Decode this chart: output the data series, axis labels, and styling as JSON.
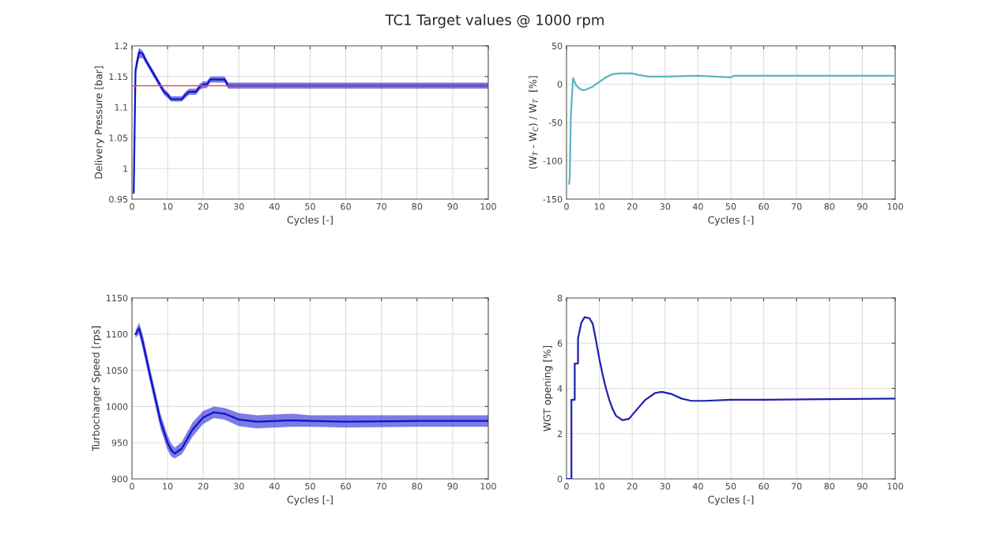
{
  "chart_data": [
    {
      "type": "line",
      "title": "TC1 Target values @ 1000 rpm",
      "xlabel": "Cycles [-]",
      "ylabel": "Delivery Pressure [bar]",
      "xlim": [
        0,
        100
      ],
      "xticks": [
        0,
        10,
        20,
        30,
        40,
        50,
        60,
        70,
        80,
        90,
        100
      ],
      "ylim": [
        0.95,
        1.2
      ],
      "yticks": [
        0.95,
        1,
        1.05,
        1.1,
        1.15,
        1.2
      ],
      "grid": true,
      "series": [
        {
          "color": "#1010d0",
          "x": [
            0.5,
            1,
            2,
            3,
            4,
            5,
            6,
            7,
            8,
            9,
            10,
            11,
            14,
            15,
            16,
            18,
            19,
            20,
            21,
            22,
            26,
            27,
            100
          ],
          "values": [
            0.96,
            1.16,
            1.19,
            1.187,
            1.175,
            1.165,
            1.155,
            1.145,
            1.135,
            1.125,
            1.12,
            1.113,
            1.113,
            1.12,
            1.125,
            1.125,
            1.133,
            1.137,
            1.137,
            1.145,
            1.145,
            1.135,
            1.135
          ],
          "lower": [
            0.95,
            1.15,
            1.18,
            1.18,
            1.17,
            1.16,
            1.15,
            1.14,
            1.13,
            1.12,
            1.115,
            1.109,
            1.109,
            1.115,
            1.12,
            1.12,
            1.128,
            1.131,
            1.131,
            1.14,
            1.14,
            1.13,
            1.13
          ],
          "upper": [
            0.97,
            1.17,
            1.197,
            1.192,
            1.18,
            1.17,
            1.16,
            1.15,
            1.14,
            1.13,
            1.125,
            1.118,
            1.118,
            1.125,
            1.13,
            1.13,
            1.138,
            1.142,
            1.142,
            1.15,
            1.15,
            1.14,
            1.14
          ]
        }
      ],
      "ref_lines": [
        {
          "axis": "y",
          "value": 1.135,
          "color": "#d9534f"
        }
      ]
    },
    {
      "type": "line",
      "xlabel": "Cycles [-]",
      "ylabel": "(W$_{T}$ - W$_{C}$) / W$_{T}$  [%]",
      "xlim": [
        0,
        100
      ],
      "xticks": [
        0,
        10,
        20,
        30,
        40,
        50,
        60,
        70,
        80,
        90,
        100
      ],
      "ylim": [
        -150,
        50
      ],
      "yticks": [
        -150,
        -100,
        -50,
        0,
        50
      ],
      "grid": true,
      "series": [
        {
          "color": "#5ab4c6",
          "x": [
            0.8,
            1,
            1.3,
            1.6,
            2,
            2.5,
            3,
            4,
            5,
            6,
            8,
            10,
            12,
            14,
            16,
            20,
            22,
            25,
            30,
            40,
            50,
            51,
            52,
            60,
            100
          ],
          "values": [
            -130,
            -120,
            -45,
            -20,
            8,
            3,
            -2,
            -6,
            -8,
            -7,
            -3,
            3,
            9,
            13,
            14,
            14,
            12,
            10,
            10,
            11,
            9,
            11,
            11,
            11,
            11
          ]
        }
      ]
    },
    {
      "type": "line",
      "xlabel": "Cycles [-]",
      "ylabel": "Turbocharger Speed [rps]",
      "xlim": [
        0,
        100
      ],
      "xticks": [
        0,
        10,
        20,
        30,
        40,
        50,
        60,
        70,
        80,
        90,
        100
      ],
      "ylim": [
        900,
        1150
      ],
      "yticks": [
        900,
        950,
        1000,
        1050,
        1100,
        1150
      ],
      "grid": true,
      "series": [
        {
          "color": "#1010d0",
          "x": [
            1,
            2,
            3,
            5,
            8,
            10,
            11,
            12,
            14,
            17,
            20,
            23,
            26,
            30,
            35,
            45,
            50,
            60,
            80,
            100
          ],
          "values": [
            1100,
            1108,
            1090,
            1045,
            980,
            950,
            940,
            935,
            942,
            968,
            985,
            992,
            990,
            982,
            979,
            981,
            980,
            979,
            980,
            980
          ],
          "lower": [
            1095,
            1100,
            1080,
            1035,
            970,
            940,
            931,
            928,
            934,
            958,
            976,
            984,
            982,
            973,
            970,
            972,
            972,
            971,
            972,
            972
          ],
          "upper": [
            1105,
            1116,
            1100,
            1055,
            990,
            960,
            949,
            943,
            951,
            978,
            994,
            1000,
            998,
            991,
            988,
            990,
            988,
            988,
            988,
            988
          ]
        }
      ]
    },
    {
      "type": "line",
      "xlabel": "Cycles [-]",
      "ylabel": "WGT opening [%]",
      "xlim": [
        0,
        100
      ],
      "xticks": [
        0,
        10,
        20,
        30,
        40,
        50,
        60,
        70,
        80,
        90,
        100
      ],
      "ylim": [
        0,
        8
      ],
      "yticks": [
        0,
        2,
        4,
        6,
        8
      ],
      "grid": true,
      "series": [
        {
          "color": "#1f1fb4",
          "x": [
            0,
            1.5,
            1.5,
            2.5,
            2.5,
            3.5,
            3.5,
            4.5,
            5.5,
            7,
            8,
            9,
            10,
            11,
            12,
            13,
            14,
            15,
            17,
            19,
            21,
            24,
            27,
            29,
            32,
            35,
            38,
            42,
            50,
            60,
            100
          ],
          "values": [
            0,
            0,
            3.5,
            3.5,
            5.1,
            5.1,
            6.2,
            6.9,
            7.15,
            7.1,
            6.85,
            6.1,
            5.3,
            4.6,
            4.0,
            3.5,
            3.1,
            2.8,
            2.6,
            2.65,
            3.0,
            3.5,
            3.8,
            3.85,
            3.75,
            3.55,
            3.45,
            3.45,
            3.5,
            3.5,
            3.55
          ]
        }
      ]
    }
  ]
}
